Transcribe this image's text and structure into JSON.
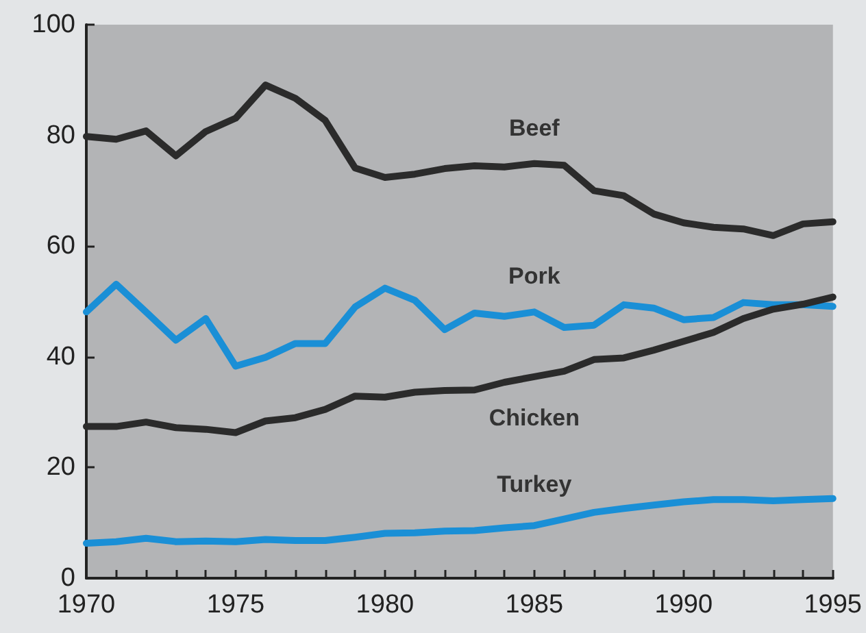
{
  "chart_data": {
    "type": "line",
    "x": [
      1970,
      1971,
      1972,
      1973,
      1974,
      1975,
      1976,
      1977,
      1978,
      1979,
      1980,
      1981,
      1982,
      1983,
      1984,
      1985,
      1986,
      1987,
      1988,
      1989,
      1990,
      1991,
      1992,
      1993,
      1994,
      1995
    ],
    "series": [
      {
        "name": "Beef",
        "color": "#2b2b2b",
        "values": [
          79.8,
          79.3,
          80.8,
          76.3,
          80.7,
          83.1,
          89.1,
          86.7,
          82.7,
          74.1,
          72.4,
          73,
          74,
          74.5,
          74.3,
          74.9,
          74.6,
          70,
          69.1,
          65.8,
          64.2,
          63.4,
          63.1,
          61.9,
          64,
          64.4
        ]
      },
      {
        "name": "Pork",
        "color": "#1a8fd6",
        "values": [
          48.1,
          53.1,
          48.1,
          43,
          46.9,
          38.3,
          39.9,
          42.4,
          42.4,
          49,
          52.4,
          50.2,
          44.9,
          47.9,
          47.3,
          48.1,
          45.3,
          45.7,
          49.4,
          48.8,
          46.7,
          47.1,
          49.8,
          49.4,
          49.4,
          49.1
        ]
      },
      {
        "name": "Chicken",
        "color": "#2b2b2b",
        "values": [
          27.4,
          27.4,
          28.2,
          27.2,
          26.9,
          26.3,
          28.4,
          29,
          30.5,
          32.9,
          32.7,
          33.6,
          33.9,
          34,
          35.4,
          36.4,
          37.4,
          39.5,
          39.8,
          41.2,
          42.8,
          44.4,
          46.9,
          48.6,
          49.5,
          50.8
        ]
      },
      {
        "name": "Turkey",
        "color": "#1a8fd6",
        "values": [
          6.3,
          6.6,
          7.2,
          6.6,
          6.7,
          6.6,
          7,
          6.8,
          6.8,
          7.4,
          8.1,
          8.2,
          8.5,
          8.6,
          9.1,
          9.5,
          10.7,
          11.9,
          12.6,
          13.2,
          13.8,
          14.2,
          14.2,
          14,
          14.2,
          14.4
        ]
      }
    ],
    "xlim": [
      1970,
      1995
    ],
    "xticks": [
      1970,
      {
        "value": 1971,
        "label": null
      },
      {
        "value": 1972,
        "label": null
      },
      {
        "value": 1973,
        "label": null
      },
      {
        "value": 1974,
        "label": null
      },
      1975,
      {
        "value": 1976,
        "label": null
      },
      {
        "value": 1977,
        "label": null
      },
      {
        "value": 1978,
        "label": null
      },
      {
        "value": 1979,
        "label": null
      },
      1980,
      {
        "value": 1981,
        "label": null
      },
      {
        "value": 1982,
        "label": null
      },
      {
        "value": 1983,
        "label": null
      },
      {
        "value": 1984,
        "label": null
      },
      1985,
      {
        "value": 1986,
        "label": null
      },
      {
        "value": 1987,
        "label": null
      },
      {
        "value": 1988,
        "label": null
      },
      {
        "value": 1989,
        "label": null
      },
      1990,
      {
        "value": 1991,
        "label": null
      },
      {
        "value": 1992,
        "label": null
      },
      {
        "value": 1993,
        "label": null
      },
      {
        "value": 1994,
        "label": null
      },
      1995
    ],
    "ylim": [
      0,
      100
    ],
    "yticks": [
      0,
      20,
      40,
      60,
      80,
      100
    ],
    "grid": false,
    "legend": false,
    "marker": "none",
    "line_style": "solid"
  }
}
